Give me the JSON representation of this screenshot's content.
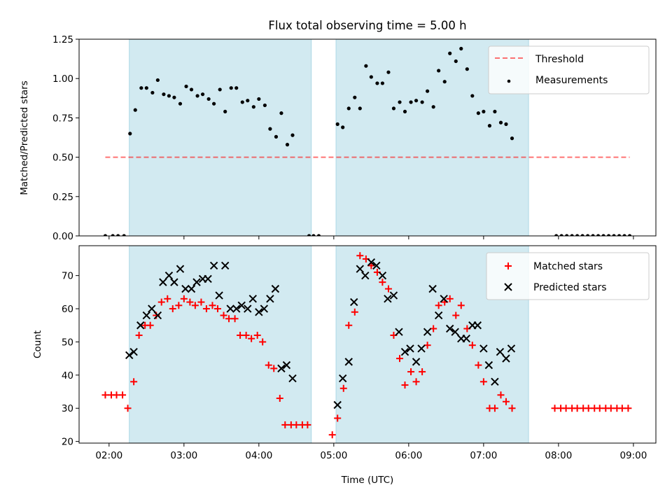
{
  "title": "Flux total observing time = 5.00 h",
  "colors": {
    "shade": "#add8e6",
    "threshold": "#ff0000",
    "matched": "#ff0000",
    "predicted": "#000000",
    "measurements": "#000000"
  },
  "chart_data": [
    {
      "type": "scatter",
      "ylabel": "Matched/Predicted stars",
      "xlabel": "",
      "x_unit": "hours UTC",
      "xlim": [
        1.6,
        9.3
      ],
      "ylim": [
        0.0,
        1.25
      ],
      "yticks": [
        0.0,
        0.25,
        0.5,
        0.75,
        1.0,
        1.25
      ],
      "ytick_labels": [
        "0.00",
        "0.25",
        "0.50",
        "0.75",
        "1.00",
        "1.25"
      ],
      "legend_position": "top-right",
      "shaded_intervals": [
        [
          2.27,
          4.7
        ],
        [
          5.03,
          7.6
        ]
      ],
      "threshold": {
        "name": "Threshold",
        "value": 0.5,
        "x_range": [
          1.95,
          8.95
        ]
      },
      "series": [
        {
          "name": "Measurements",
          "points": [
            [
              1.95,
              0.0
            ],
            [
              2.05,
              0.0
            ],
            [
              2.12,
              0.0
            ],
            [
              2.2,
              0.0
            ],
            [
              2.28,
              0.65
            ],
            [
              2.35,
              0.8
            ],
            [
              2.43,
              0.94
            ],
            [
              2.5,
              0.94
            ],
            [
              2.58,
              0.91
            ],
            [
              2.65,
              0.99
            ],
            [
              2.73,
              0.9
            ],
            [
              2.8,
              0.89
            ],
            [
              2.87,
              0.88
            ],
            [
              2.95,
              0.84
            ],
            [
              3.03,
              0.95
            ],
            [
              3.1,
              0.93
            ],
            [
              3.18,
              0.89
            ],
            [
              3.25,
              0.9
            ],
            [
              3.33,
              0.87
            ],
            [
              3.4,
              0.84
            ],
            [
              3.48,
              0.93
            ],
            [
              3.55,
              0.79
            ],
            [
              3.63,
              0.94
            ],
            [
              3.7,
              0.94
            ],
            [
              3.78,
              0.85
            ],
            [
              3.85,
              0.86
            ],
            [
              3.93,
              0.82
            ],
            [
              4.0,
              0.87
            ],
            [
              4.08,
              0.83
            ],
            [
              4.15,
              0.68
            ],
            [
              4.23,
              0.63
            ],
            [
              4.3,
              0.78
            ],
            [
              4.38,
              0.58
            ],
            [
              4.45,
              0.64
            ],
            [
              4.67,
              0.0
            ],
            [
              4.73,
              0.0
            ],
            [
              4.8,
              0.0
            ],
            [
              5.05,
              0.71
            ],
            [
              5.12,
              0.69
            ],
            [
              5.2,
              0.81
            ],
            [
              5.28,
              0.88
            ],
            [
              5.35,
              0.81
            ],
            [
              5.43,
              1.08
            ],
            [
              5.5,
              1.01
            ],
            [
              5.58,
              0.97
            ],
            [
              5.65,
              0.97
            ],
            [
              5.73,
              1.04
            ],
            [
              5.8,
              0.81
            ],
            [
              5.88,
              0.85
            ],
            [
              5.95,
              0.79
            ],
            [
              6.03,
              0.85
            ],
            [
              6.1,
              0.86
            ],
            [
              6.18,
              0.85
            ],
            [
              6.25,
              0.92
            ],
            [
              6.33,
              0.82
            ],
            [
              6.4,
              1.05
            ],
            [
              6.48,
              0.98
            ],
            [
              6.55,
              1.16
            ],
            [
              6.63,
              1.11
            ],
            [
              6.7,
              1.19
            ],
            [
              6.78,
              1.06
            ],
            [
              6.85,
              0.89
            ],
            [
              6.93,
              0.78
            ],
            [
              7.0,
              0.79
            ],
            [
              7.08,
              0.7
            ],
            [
              7.15,
              0.79
            ],
            [
              7.23,
              0.72
            ],
            [
              7.3,
              0.71
            ],
            [
              7.38,
              0.62
            ],
            [
              7.97,
              0.0
            ],
            [
              8.04,
              0.0
            ],
            [
              8.11,
              0.0
            ],
            [
              8.18,
              0.0
            ],
            [
              8.25,
              0.0
            ],
            [
              8.32,
              0.0
            ],
            [
              8.39,
              0.0
            ],
            [
              8.46,
              0.0
            ],
            [
              8.53,
              0.0
            ],
            [
              8.6,
              0.0
            ],
            [
              8.67,
              0.0
            ],
            [
              8.74,
              0.0
            ],
            [
              8.81,
              0.0
            ],
            [
              8.88,
              0.0
            ],
            [
              8.95,
              0.0
            ]
          ]
        }
      ]
    },
    {
      "type": "scatter",
      "ylabel": "Count",
      "xlabel": "Time (UTC)",
      "x_unit": "hours UTC",
      "xlim": [
        1.6,
        9.3
      ],
      "ylim": [
        19.5,
        79.0
      ],
      "yticks": [
        20,
        30,
        40,
        50,
        60,
        70
      ],
      "ytick_labels": [
        "20",
        "30",
        "40",
        "50",
        "60",
        "70"
      ],
      "xticks": [
        2,
        3,
        4,
        5,
        6,
        7,
        8,
        9
      ],
      "xtick_labels": [
        "02:00",
        "03:00",
        "04:00",
        "05:00",
        "06:00",
        "07:00",
        "08:00",
        "09:00"
      ],
      "legend_position": "top-right",
      "shaded_intervals": [
        [
          2.27,
          4.7
        ],
        [
          5.03,
          7.6
        ]
      ],
      "series": [
        {
          "name": "Matched stars",
          "marker": "plus",
          "points": [
            [
              1.95,
              34
            ],
            [
              2.03,
              34
            ],
            [
              2.1,
              34
            ],
            [
              2.18,
              34
            ],
            [
              2.25,
              30
            ],
            [
              2.33,
              38
            ],
            [
              2.4,
              52
            ],
            [
              2.48,
              55
            ],
            [
              2.55,
              55
            ],
            [
              2.63,
              58
            ],
            [
              2.7,
              62
            ],
            [
              2.78,
              63
            ],
            [
              2.85,
              60
            ],
            [
              2.93,
              61
            ],
            [
              3.0,
              63
            ],
            [
              3.08,
              62
            ],
            [
              3.15,
              61
            ],
            [
              3.23,
              62
            ],
            [
              3.3,
              60
            ],
            [
              3.38,
              61
            ],
            [
              3.45,
              60
            ],
            [
              3.53,
              58
            ],
            [
              3.6,
              57
            ],
            [
              3.68,
              57
            ],
            [
              3.75,
              52
            ],
            [
              3.83,
              52
            ],
            [
              3.9,
              51
            ],
            [
              3.98,
              52
            ],
            [
              4.05,
              50
            ],
            [
              4.13,
              43
            ],
            [
              4.2,
              42
            ],
            [
              4.28,
              33
            ],
            [
              4.35,
              25
            ],
            [
              4.43,
              25
            ],
            [
              4.5,
              25
            ],
            [
              4.58,
              25
            ],
            [
              4.65,
              25
            ],
            [
              4.98,
              22
            ],
            [
              5.05,
              27
            ],
            [
              5.13,
              36
            ],
            [
              5.2,
              55
            ],
            [
              5.28,
              59
            ],
            [
              5.35,
              76
            ],
            [
              5.43,
              75
            ],
            [
              5.5,
              73
            ],
            [
              5.58,
              71
            ],
            [
              5.65,
              68
            ],
            [
              5.73,
              66
            ],
            [
              5.8,
              52
            ],
            [
              5.88,
              45
            ],
            [
              5.95,
              37
            ],
            [
              6.03,
              41
            ],
            [
              6.1,
              38
            ],
            [
              6.18,
              41
            ],
            [
              6.25,
              49
            ],
            [
              6.33,
              54
            ],
            [
              6.4,
              61
            ],
            [
              6.48,
              62
            ],
            [
              6.55,
              63
            ],
            [
              6.63,
              58
            ],
            [
              6.7,
              61
            ],
            [
              6.78,
              54
            ],
            [
              6.85,
              49
            ],
            [
              6.93,
              43
            ],
            [
              7.0,
              38
            ],
            [
              7.08,
              30
            ],
            [
              7.15,
              30
            ],
            [
              7.23,
              34
            ],
            [
              7.3,
              32
            ],
            [
              7.38,
              30
            ],
            [
              7.95,
              30
            ],
            [
              8.03,
              30
            ],
            [
              8.1,
              30
            ],
            [
              8.18,
              30
            ],
            [
              8.25,
              30
            ],
            [
              8.33,
              30
            ],
            [
              8.4,
              30
            ],
            [
              8.48,
              30
            ],
            [
              8.55,
              30
            ],
            [
              8.63,
              30
            ],
            [
              8.7,
              30
            ],
            [
              8.78,
              30
            ],
            [
              8.85,
              30
            ],
            [
              8.93,
              30
            ]
          ]
        },
        {
          "name": "Predicted stars",
          "marker": "x",
          "points": [
            [
              2.27,
              46
            ],
            [
              2.33,
              47
            ],
            [
              2.42,
              55
            ],
            [
              2.5,
              58
            ],
            [
              2.57,
              60
            ],
            [
              2.65,
              58
            ],
            [
              2.72,
              68
            ],
            [
              2.8,
              70
            ],
            [
              2.87,
              68
            ],
            [
              2.95,
              72
            ],
            [
              3.02,
              66
            ],
            [
              3.1,
              66
            ],
            [
              3.17,
              68
            ],
            [
              3.25,
              69
            ],
            [
              3.32,
              69
            ],
            [
              3.4,
              73
            ],
            [
              3.47,
              64
            ],
            [
              3.55,
              73
            ],
            [
              3.62,
              60
            ],
            [
              3.7,
              60
            ],
            [
              3.77,
              61
            ],
            [
              3.85,
              60
            ],
            [
              3.92,
              63
            ],
            [
              4.0,
              59
            ],
            [
              4.07,
              60
            ],
            [
              4.15,
              63
            ],
            [
              4.22,
              66
            ],
            [
              4.3,
              42
            ],
            [
              4.37,
              43
            ],
            [
              4.45,
              39
            ],
            [
              5.05,
              31
            ],
            [
              5.12,
              39
            ],
            [
              5.2,
              44
            ],
            [
              5.27,
              62
            ],
            [
              5.35,
              72
            ],
            [
              5.42,
              70
            ],
            [
              5.5,
              74
            ],
            [
              5.57,
              73
            ],
            [
              5.65,
              70
            ],
            [
              5.72,
              63
            ],
            [
              5.8,
              64
            ],
            [
              5.87,
              53
            ],
            [
              5.95,
              47
            ],
            [
              6.02,
              48
            ],
            [
              6.1,
              44
            ],
            [
              6.17,
              48
            ],
            [
              6.25,
              53
            ],
            [
              6.32,
              66
            ],
            [
              6.4,
              58
            ],
            [
              6.47,
              63
            ],
            [
              6.55,
              54
            ],
            [
              6.62,
              53
            ],
            [
              6.7,
              51
            ],
            [
              6.77,
              51
            ],
            [
              6.85,
              55
            ],
            [
              6.92,
              55
            ],
            [
              7.0,
              48
            ],
            [
              7.07,
              43
            ],
            [
              7.15,
              38
            ],
            [
              7.22,
              47
            ],
            [
              7.3,
              45
            ],
            [
              7.37,
              48
            ]
          ]
        }
      ]
    }
  ]
}
